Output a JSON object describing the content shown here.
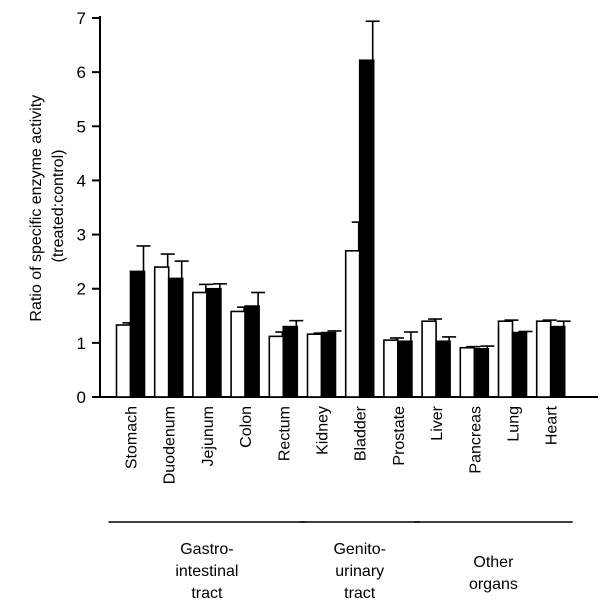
{
  "chart_data": {
    "type": "bar",
    "title": "",
    "xlabel": "",
    "ylabel_lines": [
      "Ratio of specific enzyme activity",
      "(treated:control)"
    ],
    "ylim": [
      0,
      7
    ],
    "yticks": [
      0,
      1,
      2,
      3,
      4,
      5,
      6,
      7
    ],
    "categories": [
      "Stomach",
      "Duodenum",
      "Jejunum",
      "Colon",
      "Rectum",
      "Kidney",
      "Bladder",
      "Prostate",
      "Liver",
      "Pancreas",
      "Lung",
      "Heart"
    ],
    "series": [
      {
        "color": "#ffffff",
        "values": [
          1.33,
          2.4,
          1.93,
          1.58,
          1.12,
          1.16,
          2.7,
          1.05,
          1.4,
          0.91,
          1.4,
          1.4
        ],
        "errors": [
          0.04,
          0.24,
          0.15,
          0.08,
          0.08,
          0.02,
          0.53,
          0.04,
          0.04,
          0.02,
          0.02,
          0.02
        ]
      },
      {
        "color": "#000000",
        "values": [
          2.32,
          2.19,
          2.0,
          1.68,
          1.3,
          1.19,
          6.22,
          1.03,
          1.03,
          0.89,
          1.19,
          1.3
        ],
        "errors": [
          0.47,
          0.32,
          0.09,
          0.25,
          0.11,
          0.03,
          0.72,
          0.17,
          0.08,
          0.05,
          0.02,
          0.1
        ]
      }
    ],
    "groups": [
      {
        "lines": [
          "Gastro-",
          "intestinal",
          "tract"
        ],
        "start": 0,
        "end": 4
      },
      {
        "lines": [
          "Genito-",
          "urinary",
          "tract"
        ],
        "start": 5,
        "end": 7
      },
      {
        "lines": [
          "Other",
          "organs"
        ],
        "start": 8,
        "end": 11
      }
    ],
    "grid": false,
    "legend": "none"
  }
}
